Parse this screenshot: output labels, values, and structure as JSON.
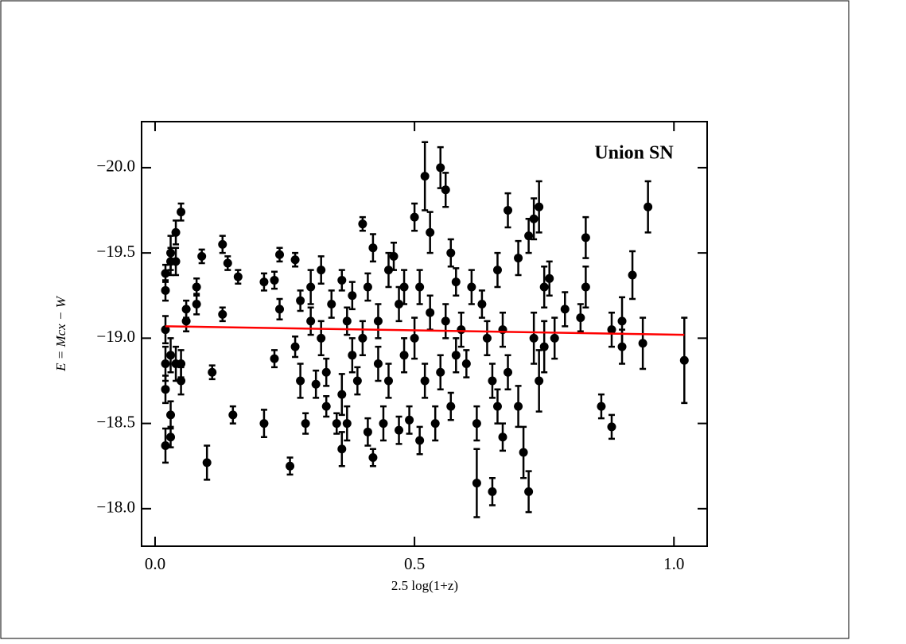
{
  "chart_data": {
    "type": "errorbar-scatter",
    "annotation": "Union SN",
    "x_label": "2.5 log(1+z)",
    "y_label": "E = Mcx − W",
    "xlim": [
      -0.026,
      1.064
    ],
    "ylim": [
      -17.78,
      -20.27
    ],
    "xticks": [
      {
        "value": 0,
        "label": "0.0"
      },
      {
        "value": 0.5,
        "label": "0.5"
      },
      {
        "value": 1,
        "label": "1.0"
      }
    ],
    "yticks": [
      {
        "value": -20,
        "label": "−20.0"
      },
      {
        "value": -19.5,
        "label": "−19.5"
      },
      {
        "value": -19,
        "label": "−19.0"
      },
      {
        "value": -18.5,
        "label": "−18.5"
      },
      {
        "value": -18,
        "label": "−18.0"
      }
    ],
    "series": [
      {
        "color": "#000000",
        "x": [
          0.02,
          0.02,
          0.02,
          0.02,
          0.02,
          0.02,
          0.03,
          0.03,
          0.03,
          0.03,
          0.03,
          0.04,
          0.04,
          0.04,
          0.05,
          0.05,
          0.05,
          0.06,
          0.06,
          0.08,
          0.08,
          0.09,
          0.1,
          0.11,
          0.13,
          0.13,
          0.14,
          0.15,
          0.16,
          0.21,
          0.21,
          0.23,
          0.23,
          0.24,
          0.24,
          0.26,
          0.27,
          0.27,
          0.28,
          0.28,
          0.29,
          0.3,
          0.3,
          0.31,
          0.32,
          0.32,
          0.33,
          0.33,
          0.34,
          0.35,
          0.36,
          0.36,
          0.36,
          0.37,
          0.37,
          0.38,
          0.38,
          0.39,
          0.4,
          0.4,
          0.41,
          0.41,
          0.42,
          0.42,
          0.43,
          0.43,
          0.44,
          0.45,
          0.45,
          0.46,
          0.47,
          0.47,
          0.48,
          0.48,
          0.49,
          0.5,
          0.5,
          0.51,
          0.51,
          0.52,
          0.52,
          0.53,
          0.53,
          0.54,
          0.55,
          0.55,
          0.56,
          0.56,
          0.57,
          0.57,
          0.58,
          0.58,
          0.59,
          0.6,
          0.61,
          0.62,
          0.62,
          0.63,
          0.64,
          0.65,
          0.65,
          0.66,
          0.66,
          0.67,
          0.67,
          0.68,
          0.68,
          0.7,
          0.7,
          0.71,
          0.72,
          0.72,
          0.73,
          0.73,
          0.74,
          0.74,
          0.75,
          0.75,
          0.76,
          0.77,
          0.79,
          0.82,
          0.83,
          0.83,
          0.86,
          0.88,
          0.88,
          0.9,
          0.9,
          0.92,
          0.94,
          0.95,
          1.02
        ],
        "y": [
          -19.38,
          -19.28,
          -19.05,
          -18.85,
          -18.7,
          -18.37,
          -19.5,
          -19.45,
          -18.55,
          -18.42,
          -18.9,
          -19.45,
          -19.62,
          -18.85,
          -19.74,
          -18.85,
          -18.75,
          -19.1,
          -19.17,
          -19.2,
          -19.3,
          -19.48,
          -18.27,
          -18.8,
          -19.55,
          -19.14,
          -19.44,
          -18.55,
          -19.36,
          -19.33,
          -18.5,
          -19.34,
          -18.88,
          -19.49,
          -19.17,
          -18.25,
          -19.46,
          -18.95,
          -19.22,
          -18.75,
          -18.5,
          -19.1,
          -19.3,
          -18.73,
          -19.4,
          -19.0,
          -18.6,
          -18.8,
          -19.2,
          -18.5,
          -19.34,
          -18.67,
          -18.35,
          -19.1,
          -18.5,
          -19.25,
          -18.9,
          -18.75,
          -19.67,
          -19.0,
          -18.45,
          -19.3,
          -18.3,
          -19.53,
          -18.85,
          -19.1,
          -18.5,
          -19.4,
          -18.75,
          -19.48,
          -18.46,
          -19.2,
          -18.9,
          -19.3,
          -18.52,
          -19.71,
          -19.0,
          -19.3,
          -18.4,
          -19.95,
          -18.75,
          -19.62,
          -19.15,
          -18.5,
          -20.0,
          -18.8,
          -19.87,
          -19.1,
          -19.5,
          -18.6,
          -19.33,
          -18.9,
          -19.05,
          -18.85,
          -19.3,
          -18.15,
          -18.5,
          -19.2,
          -19.0,
          -18.1,
          -18.75,
          -19.4,
          -18.6,
          -18.42,
          -19.05,
          -18.8,
          -19.75,
          -19.47,
          -18.6,
          -18.33,
          -18.1,
          -19.6,
          -19.7,
          -19.0,
          -19.77,
          -18.75,
          -18.95,
          -19.3,
          -19.35,
          -19.0,
          -19.17,
          -19.12,
          -19.59,
          -19.3,
          -18.6,
          -18.48,
          -19.05,
          -18.95,
          -19.1,
          -19.37,
          -18.97,
          -19.77,
          -18.87
        ],
        "err": [
          0.05,
          0.06,
          0.08,
          0.1,
          0.08,
          0.1,
          0.1,
          0.08,
          0.08,
          0.06,
          0.1,
          0.08,
          0.07,
          0.1,
          0.05,
          0.08,
          0.08,
          0.06,
          0.05,
          0.06,
          0.05,
          0.04,
          0.1,
          0.04,
          0.05,
          0.04,
          0.04,
          0.05,
          0.04,
          0.05,
          0.08,
          0.05,
          0.05,
          0.04,
          0.06,
          0.05,
          0.04,
          0.06,
          0.06,
          0.1,
          0.06,
          0.08,
          0.1,
          0.08,
          0.08,
          0.1,
          0.06,
          0.08,
          0.08,
          0.06,
          0.06,
          0.12,
          0.1,
          0.08,
          0.1,
          0.08,
          0.1,
          0.08,
          0.04,
          0.1,
          0.08,
          0.08,
          0.05,
          0.08,
          0.1,
          0.1,
          0.1,
          0.1,
          0.1,
          0.08,
          0.08,
          0.1,
          0.1,
          0.1,
          0.08,
          0.08,
          0.12,
          0.1,
          0.08,
          0.2,
          0.1,
          0.12,
          0.1,
          0.1,
          0.12,
          0.1,
          0.1,
          0.1,
          0.08,
          0.08,
          0.08,
          0.1,
          0.1,
          0.08,
          0.1,
          0.2,
          0.1,
          0.08,
          0.1,
          0.08,
          0.1,
          0.1,
          0.1,
          0.08,
          0.1,
          0.1,
          0.1,
          0.1,
          0.12,
          0.15,
          0.12,
          0.1,
          0.12,
          0.15,
          0.15,
          0.18,
          0.15,
          0.12,
          0.1,
          0.12,
          0.1,
          0.08,
          0.12,
          0.12,
          0.07,
          0.07,
          0.1,
          0.1,
          0.14,
          0.14,
          0.15,
          0.15,
          0.25
        ]
      }
    ],
    "fit": {
      "color": "#ff0000",
      "x": [
        0.02,
        1.02
      ],
      "y": [
        -19.07,
        -19.02
      ]
    }
  }
}
